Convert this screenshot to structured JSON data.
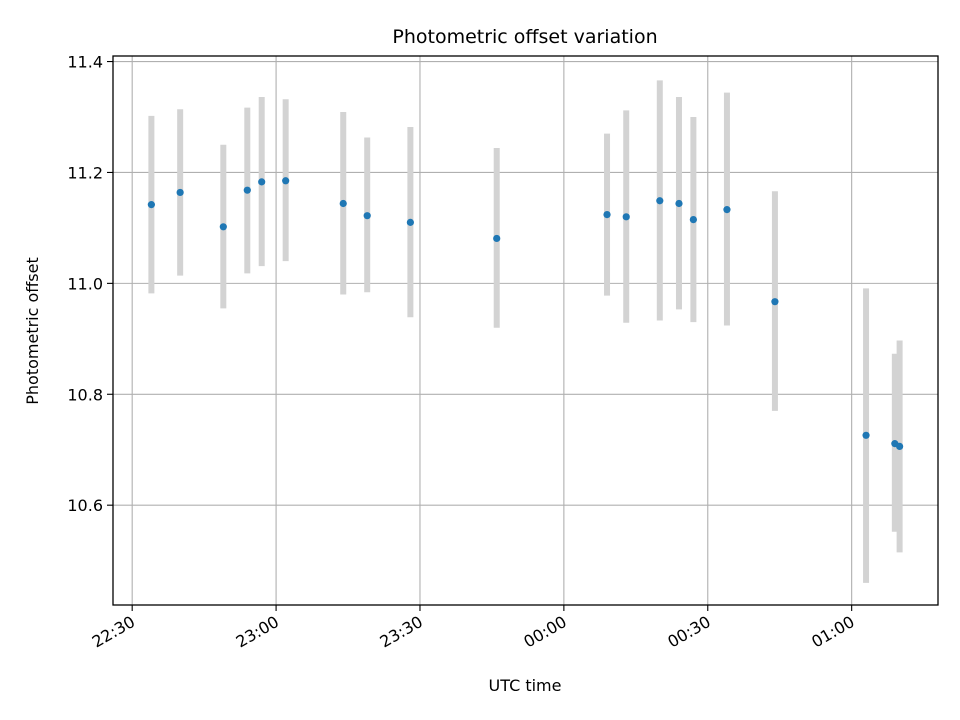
{
  "chart_data": {
    "type": "scatter",
    "title": "Photometric offset variation",
    "xlabel": "UTC time",
    "ylabel": "Photometric offset",
    "x_ticks": [
      "22:30",
      "23:00",
      "23:30",
      "00:00",
      "00:30",
      "01:00"
    ],
    "y_ticks": [
      "10.6",
      "10.8",
      "11.0",
      "11.2",
      "11.4"
    ],
    "ylim": [
      10.42,
      11.41
    ],
    "xlim": [
      "22:26",
      "01:18"
    ],
    "grid": true,
    "marker_color": "#1f77b4",
    "errorbar_color": "#d3d3d3",
    "points": [
      {
        "time": "22:34",
        "value": 11.142,
        "err_low": 10.982,
        "err_high": 11.302
      },
      {
        "time": "22:40",
        "value": 11.164,
        "err_low": 11.014,
        "err_high": 11.314
      },
      {
        "time": "22:49",
        "value": 11.102,
        "err_low": 10.955,
        "err_high": 11.25
      },
      {
        "time": "22:54",
        "value": 11.168,
        "err_low": 11.018,
        "err_high": 11.317
      },
      {
        "time": "22:57",
        "value": 11.183,
        "err_low": 11.031,
        "err_high": 11.336
      },
      {
        "time": "23:02",
        "value": 11.185,
        "err_low": 11.04,
        "err_high": 11.332
      },
      {
        "time": "23:14",
        "value": 11.144,
        "err_low": 10.98,
        "err_high": 11.309
      },
      {
        "time": "23:19",
        "value": 11.122,
        "err_low": 10.984,
        "err_high": 11.263
      },
      {
        "time": "23:28",
        "value": 11.11,
        "err_low": 10.939,
        "err_high": 11.282
      },
      {
        "time": "23:46",
        "value": 11.081,
        "err_low": 10.92,
        "err_high": 11.244
      },
      {
        "time": "00:09",
        "value": 11.124,
        "err_low": 10.978,
        "err_high": 11.27
      },
      {
        "time": "00:13",
        "value": 11.12,
        "err_low": 10.929,
        "err_high": 11.312
      },
      {
        "time": "00:20",
        "value": 11.149,
        "err_low": 10.933,
        "err_high": 11.366
      },
      {
        "time": "00:24",
        "value": 11.144,
        "err_low": 10.953,
        "err_high": 11.336
      },
      {
        "time": "00:27",
        "value": 11.115,
        "err_low": 10.93,
        "err_high": 11.3
      },
      {
        "time": "00:34",
        "value": 11.133,
        "err_low": 10.924,
        "err_high": 11.344
      },
      {
        "time": "00:44",
        "value": 10.967,
        "err_low": 10.77,
        "err_high": 11.166
      },
      {
        "time": "01:03",
        "value": 10.726,
        "err_low": 10.46,
        "err_high": 10.991
      },
      {
        "time": "01:09",
        "value": 10.711,
        "err_low": 10.552,
        "err_high": 10.873
      },
      {
        "time": "01:10",
        "value": 10.706,
        "err_low": 10.515,
        "err_high": 10.897
      }
    ]
  }
}
